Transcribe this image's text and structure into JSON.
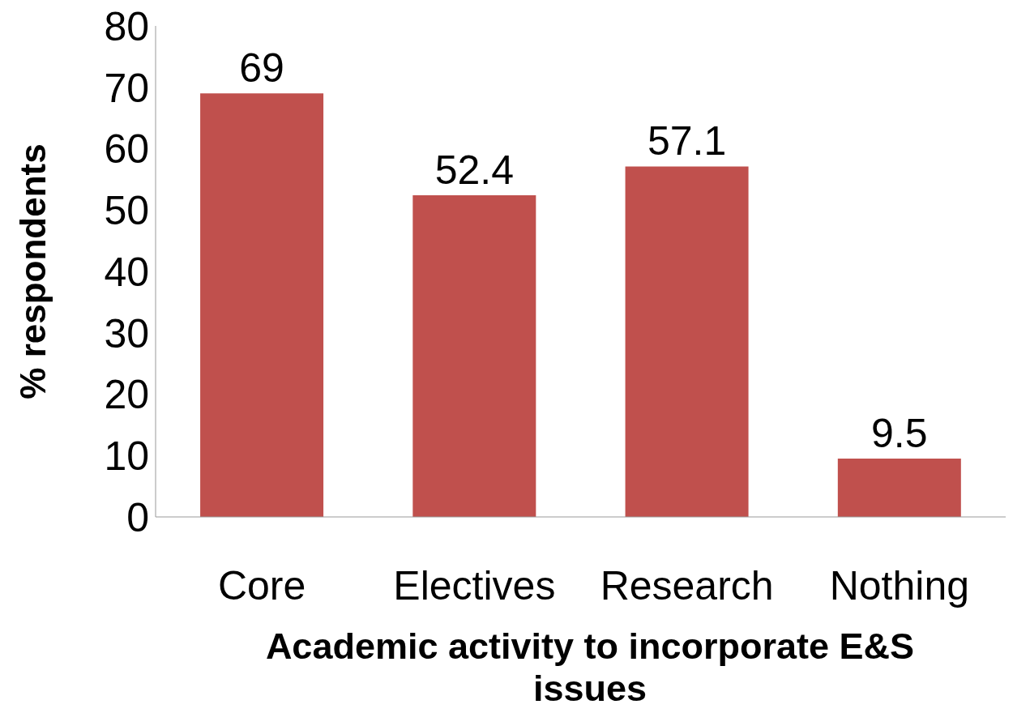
{
  "chart_data": {
    "type": "bar",
    "xlabel": "Academic activity to incorporate E&S issues",
    "ylabel": "% respondents",
    "categories": [
      "Core",
      "Electives",
      "Research",
      "Nothing"
    ],
    "values": [
      69,
      52.4,
      57.1,
      9.5
    ],
    "color": "#c0504d",
    "ylim": [
      0,
      80
    ],
    "yticks": [
      0,
      10,
      20,
      30,
      40,
      50,
      60,
      70,
      80
    ],
    "grid": false,
    "data_labels": true
  }
}
